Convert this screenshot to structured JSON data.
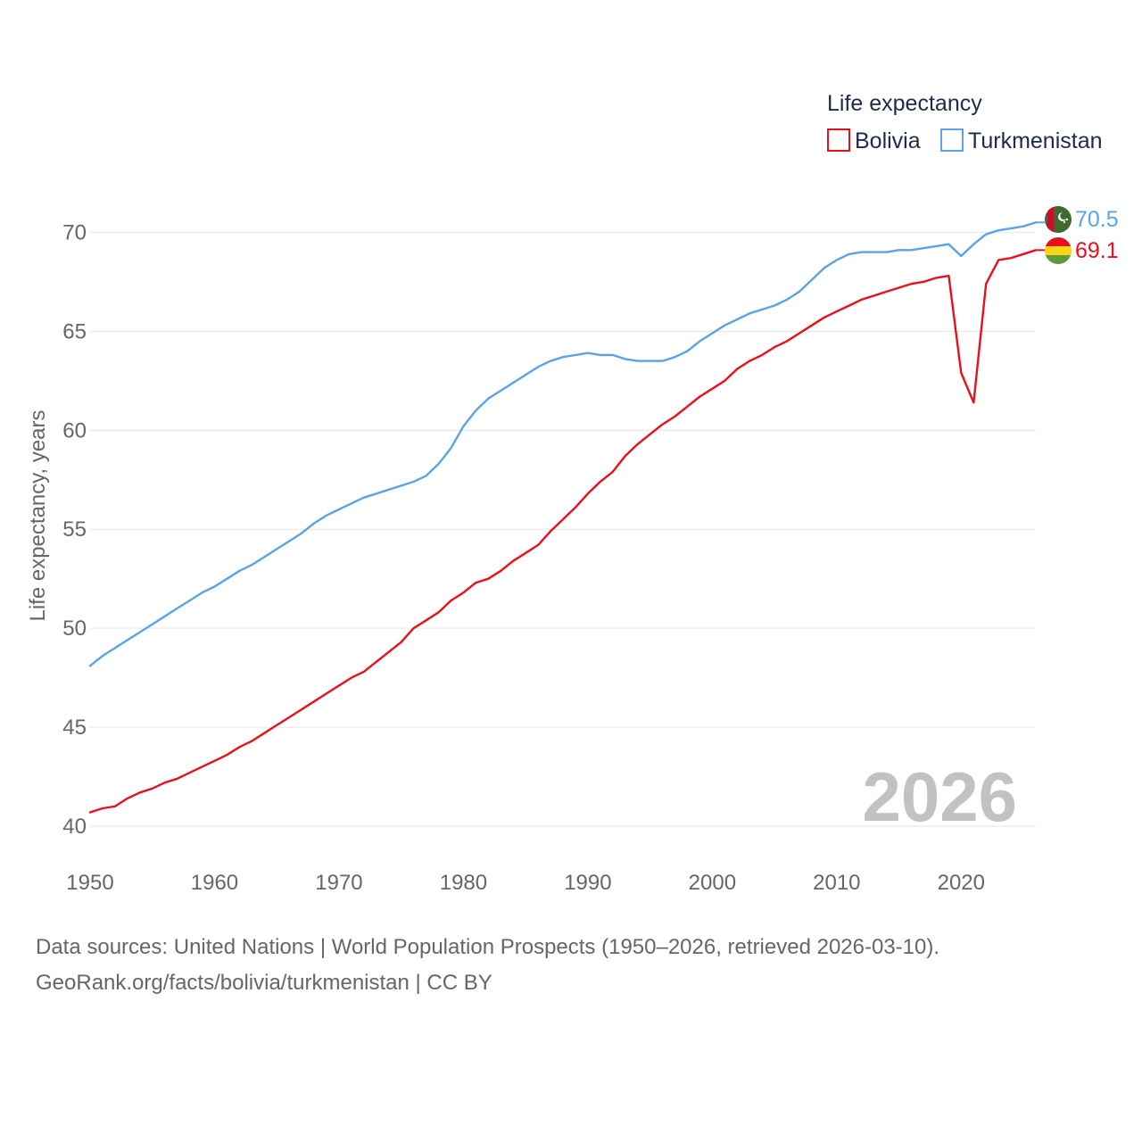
{
  "chart_data": {
    "type": "line",
    "title": "Life expectancy",
    "ylabel": "Life expectancy, years",
    "xlabel": "",
    "xlim": [
      1950,
      2026
    ],
    "ylim": [
      40,
      72
    ],
    "x_ticks": [
      "1950",
      "1960",
      "1970",
      "1980",
      "1990",
      "2000",
      "2010",
      "2020"
    ],
    "y_ticks": [
      "40",
      "45",
      "50",
      "55",
      "60",
      "65",
      "70"
    ],
    "current_year": "2026",
    "x": [
      1950,
      1951,
      1952,
      1953,
      1954,
      1955,
      1956,
      1957,
      1958,
      1959,
      1960,
      1961,
      1962,
      1963,
      1964,
      1965,
      1966,
      1967,
      1968,
      1969,
      1970,
      1971,
      1972,
      1973,
      1974,
      1975,
      1976,
      1977,
      1978,
      1979,
      1980,
      1981,
      1982,
      1983,
      1984,
      1985,
      1986,
      1987,
      1988,
      1989,
      1990,
      1991,
      1992,
      1993,
      1994,
      1995,
      1996,
      1997,
      1998,
      1999,
      2000,
      2001,
      2002,
      2003,
      2004,
      2005,
      2006,
      2007,
      2008,
      2009,
      2010,
      2011,
      2012,
      2013,
      2014,
      2015,
      2016,
      2017,
      2018,
      2019,
      2020,
      2021,
      2022,
      2023,
      2024,
      2025,
      2026
    ],
    "series": [
      {
        "name": "Bolivia",
        "color": "#e8101a",
        "end_label": "69.1",
        "flag": "bolivia-flag-icon",
        "values": [
          40.7,
          40.9,
          41.0,
          41.4,
          41.7,
          41.9,
          42.2,
          42.4,
          42.7,
          43.0,
          43.3,
          43.6,
          44.0,
          44.3,
          44.7,
          45.1,
          45.5,
          45.9,
          46.3,
          46.7,
          47.1,
          47.5,
          47.8,
          48.3,
          48.8,
          49.3,
          50.0,
          50.4,
          50.8,
          51.4,
          51.8,
          52.3,
          52.5,
          52.9,
          53.4,
          53.8,
          54.2,
          54.9,
          55.5,
          56.1,
          56.8,
          57.4,
          57.9,
          58.7,
          59.3,
          59.8,
          60.3,
          60.7,
          61.2,
          61.7,
          62.1,
          62.5,
          63.1,
          63.5,
          63.8,
          64.2,
          64.5,
          64.9,
          65.3,
          65.7,
          66.0,
          66.3,
          66.6,
          66.8,
          67.0,
          67.2,
          67.4,
          67.5,
          67.7,
          67.8,
          62.9,
          61.4,
          67.4,
          68.6,
          68.7,
          68.9,
          69.1
        ]
      },
      {
        "name": "Turkmenistan",
        "color": "#5ba3e6",
        "end_label": "70.5",
        "flag": "turkmenistan-flag-icon",
        "values": [
          48.1,
          48.6,
          49.0,
          49.4,
          49.8,
          50.2,
          50.6,
          51.0,
          51.4,
          51.8,
          52.1,
          52.5,
          52.9,
          53.2,
          53.6,
          54.0,
          54.4,
          54.8,
          55.3,
          55.7,
          56.0,
          56.3,
          56.6,
          56.8,
          57.0,
          57.2,
          57.4,
          57.7,
          58.3,
          59.1,
          60.2,
          61.0,
          61.6,
          62.0,
          62.4,
          62.8,
          63.2,
          63.5,
          63.7,
          63.8,
          63.9,
          63.8,
          63.8,
          63.6,
          63.5,
          63.5,
          63.5,
          63.7,
          64.0,
          64.5,
          64.9,
          65.3,
          65.6,
          65.9,
          66.1,
          66.3,
          66.6,
          67.0,
          67.6,
          68.2,
          68.6,
          68.9,
          69.0,
          69.0,
          69.0,
          69.1,
          69.1,
          69.2,
          69.3,
          69.4,
          68.8,
          69.4,
          69.9,
          70.1,
          70.2,
          70.3,
          70.5
        ]
      }
    ]
  },
  "footer": {
    "line1": "Data sources: United Nations | World Population Prospects (1950–2026, retrieved 2026-03-10).",
    "line2": "GeoRank.org/facts/bolivia/turkmenistan | CC BY"
  }
}
